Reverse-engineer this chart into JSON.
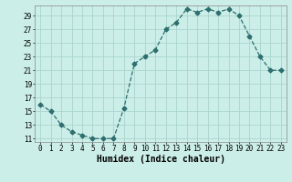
{
  "x": [
    0,
    1,
    2,
    3,
    4,
    5,
    6,
    7,
    8,
    9,
    10,
    11,
    12,
    13,
    14,
    15,
    16,
    17,
    18,
    19,
    20,
    21,
    22,
    23
  ],
  "y": [
    16,
    15,
    13,
    12,
    11.5,
    11,
    11,
    11,
    15.5,
    22,
    23,
    24,
    27,
    28,
    30,
    29.5,
    30,
    29.5,
    30,
    29,
    26,
    23,
    21,
    21
  ],
  "line_color": "#2d6e6e",
  "marker": "D",
  "bg_color": "#cceee8",
  "grid_color": "#aad4ce",
  "xlabel": "Humidex (Indice chaleur)",
  "xlim": [
    -0.5,
    23.5
  ],
  "ylim": [
    10.5,
    30.5
  ],
  "yticks": [
    11,
    13,
    15,
    17,
    19,
    21,
    23,
    25,
    27,
    29
  ],
  "xticks": [
    0,
    1,
    2,
    3,
    4,
    5,
    6,
    7,
    8,
    9,
    10,
    11,
    12,
    13,
    14,
    15,
    16,
    17,
    18,
    19,
    20,
    21,
    22,
    23
  ],
  "xtick_labels": [
    "0",
    "1",
    "2",
    "3",
    "4",
    "5",
    "6",
    "7",
    "8",
    "9",
    "10",
    "11",
    "12",
    "13",
    "14",
    "15",
    "16",
    "17",
    "18",
    "19",
    "20",
    "21",
    "22",
    "23"
  ],
  "tick_fontsize": 5.5,
  "xlabel_fontsize": 7
}
